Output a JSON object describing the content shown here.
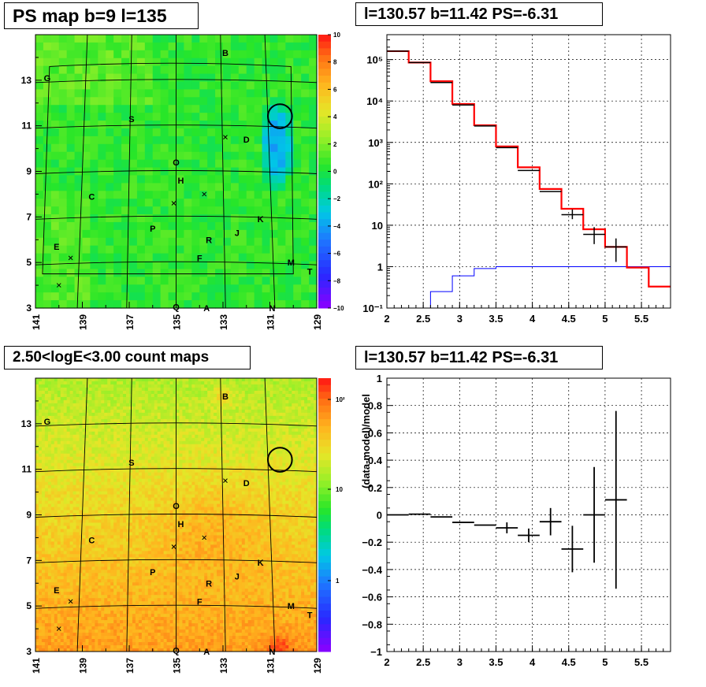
{
  "panels": {
    "ps_map_title": "PS map b=9 l=135",
    "spectrum_title": "l=130.57 b=11.42 PS=-6.31",
    "count_map_title": "2.50<logE<3.00 count maps",
    "residual_title": "l=130.57 b=11.42 PS=-6.31"
  },
  "chart_data": [
    {
      "type": "heatmap",
      "name": "ps_map",
      "x_ticks": [
        "141",
        "139",
        "137",
        "135",
        "133",
        "131",
        "129"
      ],
      "y_ticks": [
        "3",
        "5",
        "7",
        "9",
        "11",
        "13"
      ],
      "xlim": [
        141,
        129
      ],
      "ylim": [
        3,
        15
      ],
      "colorbar_ticks": [
        "10",
        "8",
        "6",
        "4",
        "2",
        "0",
        "−2",
        "−4",
        "−6",
        "−8",
        "−10"
      ],
      "zlim": [
        -10,
        10
      ],
      "background_value": 0.5,
      "source_labels": [
        {
          "text": "B",
          "l": 132.9,
          "b": 14.2
        },
        {
          "text": "G",
          "l": 140.5,
          "b": 13.1
        },
        {
          "text": "S",
          "l": 136.9,
          "b": 11.3
        },
        {
          "text": "D",
          "l": 132.0,
          "b": 10.4
        },
        {
          "text": "O",
          "l": 135.0,
          "b": 9.4
        },
        {
          "text": "H",
          "l": 134.8,
          "b": 8.6
        },
        {
          "text": "C",
          "l": 138.6,
          "b": 7.9
        },
        {
          "text": "K",
          "l": 131.4,
          "b": 6.9
        },
        {
          "text": "P",
          "l": 136.0,
          "b": 6.5
        },
        {
          "text": "J",
          "l": 132.4,
          "b": 6.3
        },
        {
          "text": "R",
          "l": 133.6,
          "b": 6.0
        },
        {
          "text": "E",
          "l": 140.1,
          "b": 5.7
        },
        {
          "text": "F",
          "l": 134.0,
          "b": 5.2
        },
        {
          "text": "M",
          "l": 130.1,
          "b": 5.0
        },
        {
          "text": "T",
          "l": 129.3,
          "b": 4.6
        },
        {
          "text": "Q",
          "l": 135.0,
          "b": 3.05
        },
        {
          "text": "A",
          "l": 133.7,
          "b": 3.0
        },
        {
          "text": "N",
          "l": 130.9,
          "b": 3.0
        }
      ],
      "crosses": [
        {
          "l": 132.9,
          "b": 10.5
        },
        {
          "l": 133.8,
          "b": 8.0
        },
        {
          "l": 135.1,
          "b": 7.6
        },
        {
          "l": 139.5,
          "b": 5.2
        },
        {
          "l": 140.0,
          "b": 4.0
        }
      ],
      "circle": {
        "l": 130.57,
        "b": 11.42,
        "radius_deg": 0.5
      },
      "negative_patch": {
        "l": 130.7,
        "b": 10.2,
        "value": -2.5
      }
    },
    {
      "type": "line",
      "name": "spectrum",
      "x_ticks": [
        "2",
        "2.5",
        "3",
        "3.5",
        "4",
        "4.5",
        "5",
        "5.5"
      ],
      "xlim": [
        2.0,
        5.9
      ],
      "ylim": [
        0.1,
        400000
      ],
      "log_y": true,
      "y_ticks": [
        "10⁻¹",
        "1",
        "10",
        "10²",
        "10³",
        "10⁴",
        "10⁵"
      ],
      "grid": true,
      "model_red": {
        "edges": [
          2.0,
          2.3,
          2.6,
          2.9,
          3.2,
          3.5,
          3.8,
          4.1,
          4.4,
          4.7,
          5.0,
          5.3,
          5.6,
          5.9
        ],
        "values": [
          160000,
          85000,
          30000,
          8500,
          2600,
          800,
          250,
          75,
          25,
          8,
          3,
          0.95,
          0.33
        ]
      },
      "background_blue": {
        "edges": [
          2.6,
          2.65,
          2.9,
          3.2,
          3.5,
          5.9
        ],
        "values": [
          0.25,
          0.25,
          0.6,
          0.9,
          1.0
        ]
      },
      "data_black": {
        "x": [
          2.15,
          2.45,
          2.75,
          3.05,
          3.35,
          3.65,
          3.95,
          4.25,
          4.55,
          4.85,
          5.15
        ],
        "y": [
          160000,
          85000,
          28000,
          8000,
          2500,
          750,
          210,
          65,
          18,
          6,
          3
        ],
        "yerr_low": [
          0,
          0,
          0,
          0,
          0,
          0,
          0,
          0,
          4,
          2.5,
          1.7
        ],
        "yerr_high": [
          0,
          0,
          0,
          0,
          0,
          0,
          0,
          0,
          6,
          3,
          1.8
        ]
      }
    },
    {
      "type": "heatmap",
      "name": "count_map",
      "x_ticks": [
        "141",
        "139",
        "137",
        "135",
        "133",
        "131",
        "129"
      ],
      "y_ticks": [
        "3",
        "5",
        "7",
        "9",
        "11",
        "13"
      ],
      "xlim": [
        141,
        129
      ],
      "ylim": [
        3,
        15
      ],
      "colorbar_ticks": [
        "10²",
        "10",
        "1"
      ],
      "log_z": true,
      "circle": {
        "l": 130.57,
        "b": 11.42,
        "radius_deg": 0.5
      }
    },
    {
      "type": "scatter",
      "name": "residual",
      "ylabel": "(data-model)/model",
      "x_ticks": [
        "2",
        "2.5",
        "3",
        "3.5",
        "4",
        "4.5",
        "5",
        "5.5"
      ],
      "y_ticks": [
        "−1",
        "−0.8",
        "−0.6",
        "−0.4",
        "−0.2",
        "0",
        "0.2",
        "0.4",
        "0.6",
        "0.8",
        "1"
      ],
      "xlim": [
        2.0,
        5.9
      ],
      "ylim": [
        -1,
        1
      ],
      "grid": true,
      "points": [
        {
          "x": 2.15,
          "y": 0.0,
          "xerr": 0.15,
          "yerr": 0.0
        },
        {
          "x": 2.45,
          "y": 0.005,
          "xerr": 0.15,
          "yerr": 0.0
        },
        {
          "x": 2.75,
          "y": -0.015,
          "xerr": 0.15,
          "yerr": 0.0
        },
        {
          "x": 3.05,
          "y": -0.055,
          "xerr": 0.15,
          "yerr": 0.0
        },
        {
          "x": 3.35,
          "y": -0.075,
          "xerr": 0.15,
          "yerr": 0.0
        },
        {
          "x": 3.65,
          "y": -0.095,
          "xerr": 0.15,
          "yerr": 0.04
        },
        {
          "x": 3.95,
          "y": -0.15,
          "xerr": 0.15,
          "yerr": 0.05
        },
        {
          "x": 4.25,
          "y": -0.05,
          "xerr": 0.15,
          "yerr": 0.1
        },
        {
          "x": 4.55,
          "y": -0.25,
          "xerr": 0.15,
          "yerr": 0.17
        },
        {
          "x": 4.85,
          "y": 0.0,
          "xerr": 0.15,
          "yerr": 0.35
        },
        {
          "x": 5.15,
          "y": 0.11,
          "xerr": 0.15,
          "yerr": 0.65
        }
      ]
    }
  ]
}
